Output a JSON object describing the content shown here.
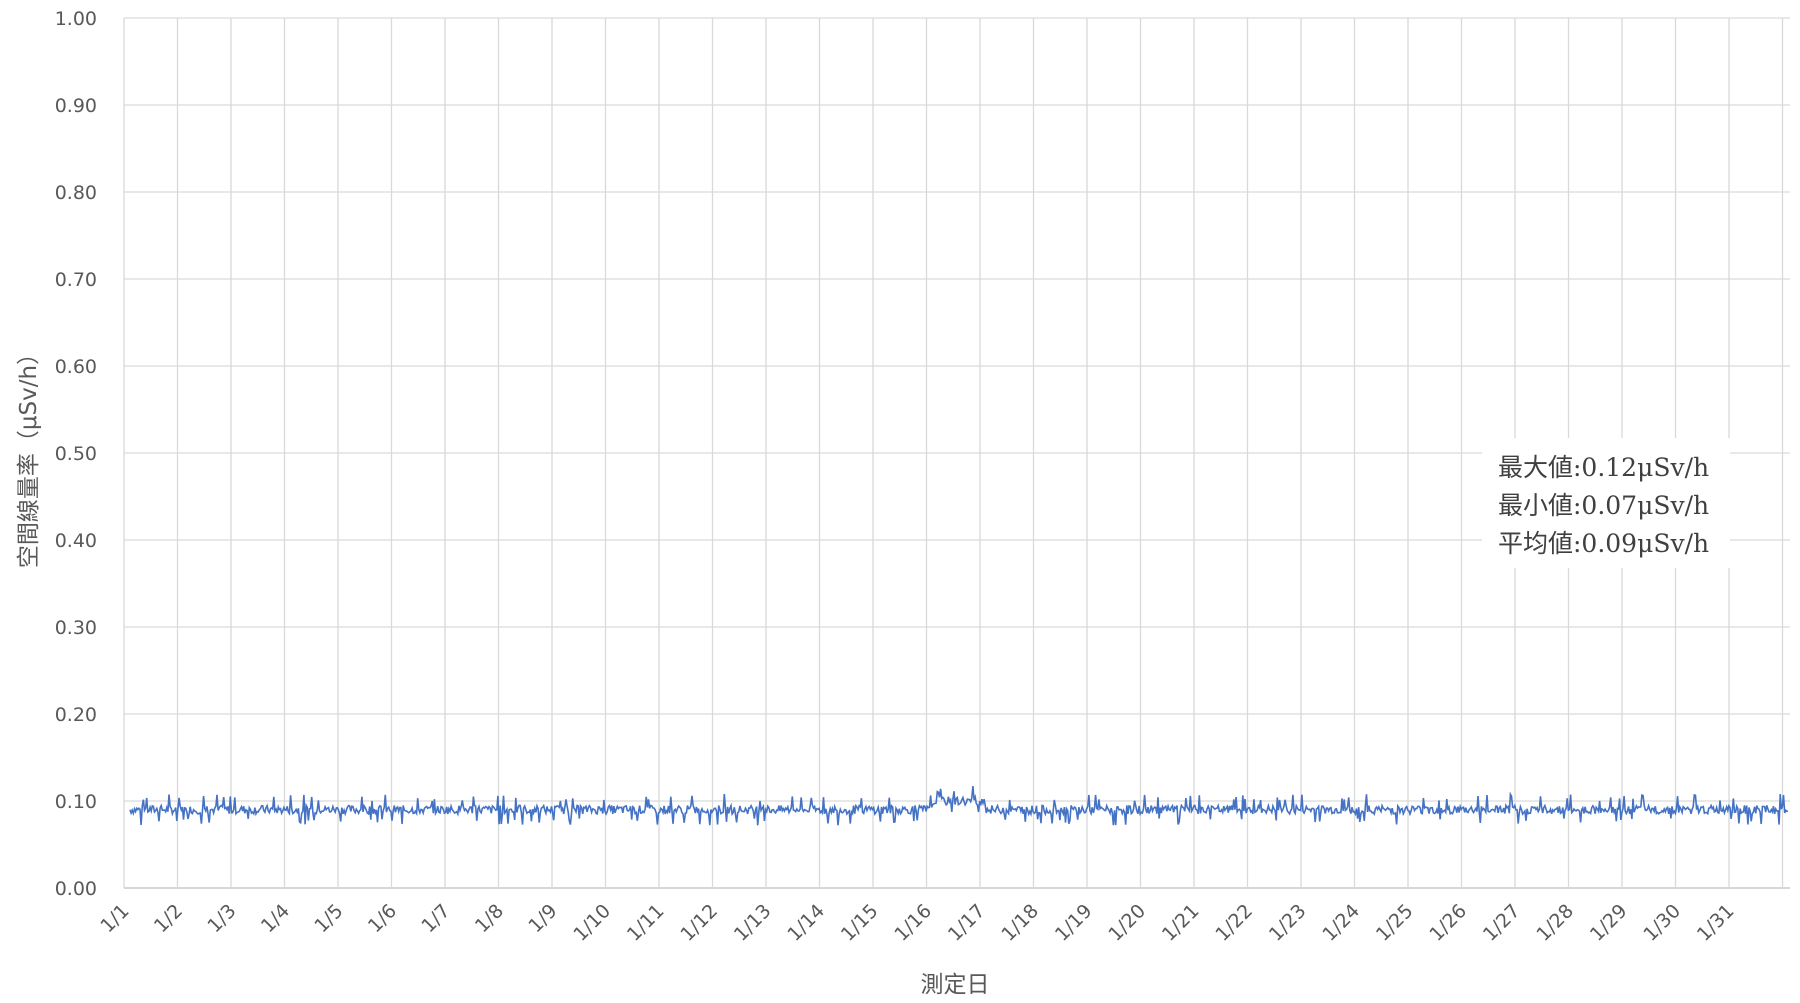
{
  "chart_data": {
    "type": "line",
    "xlabel": "測定日",
    "ylabel": "空間線量率（μSv/h）",
    "ylim": [
      0,
      1.0
    ],
    "yticks": [
      "0.00",
      "0.10",
      "0.20",
      "0.30",
      "0.40",
      "0.50",
      "0.60",
      "0.70",
      "0.80",
      "0.90",
      "1.00"
    ],
    "categories": [
      "1/1",
      "1/2",
      "1/3",
      "1/4",
      "1/5",
      "1/6",
      "1/7",
      "1/8",
      "1/9",
      "1/10",
      "1/11",
      "1/12",
      "1/13",
      "1/14",
      "1/15",
      "1/16",
      "1/17",
      "1/18",
      "1/19",
      "1/20",
      "1/21",
      "1/22",
      "1/23",
      "1/24",
      "1/25",
      "1/26",
      "1/27",
      "1/28",
      "1/29",
      "1/30",
      "1/31"
    ],
    "series": [
      {
        "color": "#4472C4",
        "daily_level": [
          0.09,
          0.09,
          0.09,
          0.09,
          0.09,
          0.09,
          0.09,
          0.09,
          0.09,
          0.09,
          0.09,
          0.09,
          0.09,
          0.09,
          0.09,
          0.1,
          0.09,
          0.09,
          0.09,
          0.09,
          0.09,
          0.09,
          0.09,
          0.09,
          0.09,
          0.09,
          0.09,
          0.09,
          0.09,
          0.09,
          0.09
        ]
      }
    ],
    "grid": true,
    "legend": "none",
    "annotation": {
      "max": "最大値:0.12μSv/h",
      "min": "最小値:0.07μSv/h",
      "avg": "平均値:0.09μSv/h"
    },
    "stats": {
      "max": 0.12,
      "min": 0.07,
      "mean": 0.09
    }
  }
}
